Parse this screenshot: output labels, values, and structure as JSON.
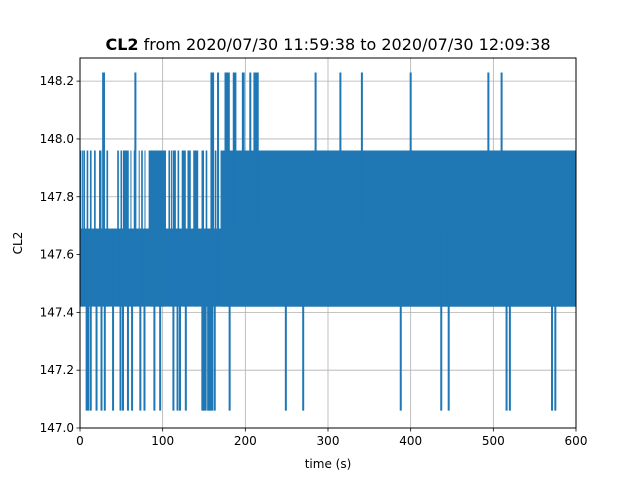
{
  "chart_data": {
    "type": "line",
    "title": {
      "bold": "CL2",
      "rest": " from 2020/07/30 11:59:38 to 2020/07/30 12:09:38"
    },
    "xlabel": "time (s)",
    "ylabel": "CL2",
    "xlim": [
      0,
      600
    ],
    "ylim": [
      147.0,
      148.28
    ],
    "grid": true,
    "color": "#1f77b4",
    "xticks": [
      0,
      100,
      200,
      300,
      400,
      500,
      600
    ],
    "yticks": [
      147.0,
      147.2,
      147.4,
      147.6,
      147.8,
      148.0,
      148.2
    ],
    "levels": [
      147.06,
      147.42,
      147.69,
      147.96,
      148.23
    ],
    "dense_bands": [
      {
        "x_start": 0,
        "x_end": 600,
        "y_low": 147.42,
        "y_high": 147.69
      },
      {
        "x_start": 172,
        "x_end": 600,
        "y_low": 147.42,
        "y_high": 147.96
      }
    ],
    "upper_band_segments": [
      [
        0,
        1
      ],
      [
        2,
        3.5
      ],
      [
        4,
        6
      ],
      [
        8,
        10
      ],
      [
        12,
        14
      ],
      [
        17,
        19
      ],
      [
        23,
        26
      ],
      [
        32,
        34
      ],
      [
        45,
        47
      ],
      [
        49,
        51
      ],
      [
        52,
        59
      ],
      [
        61,
        62
      ],
      [
        65,
        67
      ],
      [
        71,
        72
      ],
      [
        74,
        76
      ],
      [
        78,
        79
      ],
      [
        83,
        104
      ],
      [
        107,
        109
      ],
      [
        110,
        111
      ],
      [
        112,
        116
      ],
      [
        118,
        120
      ],
      [
        123,
        128
      ],
      [
        130,
        134
      ],
      [
        137,
        143
      ],
      [
        147,
        150
      ],
      [
        152,
        154
      ],
      [
        159,
        161
      ],
      [
        163,
        165
      ],
      [
        167,
        168
      ],
      [
        170,
        600
      ]
    ],
    "spikes_up": [
      28,
      29,
      67,
      159,
      160,
      161,
      167,
      176,
      178,
      180,
      186,
      188,
      197,
      198,
      206,
      211,
      213,
      215,
      285,
      315,
      341,
      400,
      494,
      510
    ],
    "spikes_down": [
      8,
      10,
      13,
      20,
      26,
      30,
      40,
      49,
      52,
      58,
      63,
      73,
      78,
      90,
      97,
      113,
      118,
      121,
      128,
      148,
      150,
      152,
      155,
      157,
      158,
      160,
      163,
      181,
      249,
      270,
      388,
      437,
      446,
      516,
      520,
      571,
      575
    ]
  }
}
